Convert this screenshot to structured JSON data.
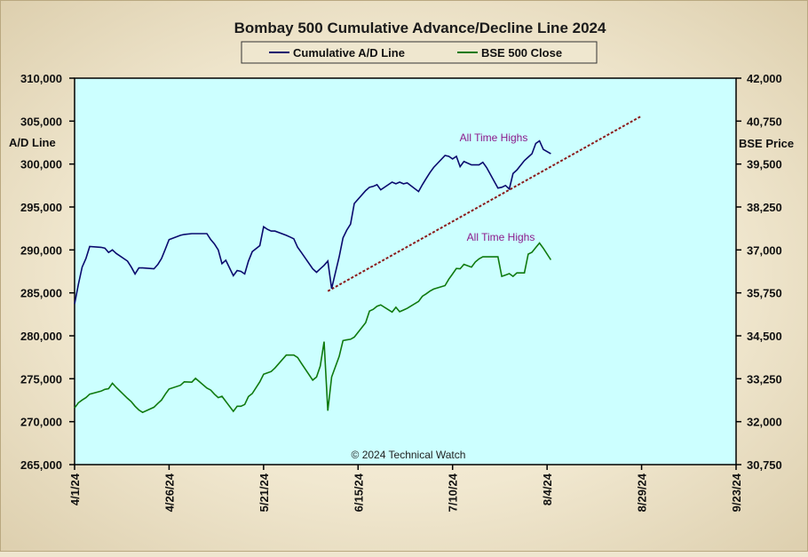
{
  "chart_data": {
    "type": "line",
    "title": "Bombay 500 Cumulative Advance/Decline Line 2024",
    "ylabel_left": "A/D Line",
    "ylabel_right": "BSE Price",
    "ylim_left": [
      265000,
      310000
    ],
    "ylim_right": [
      30750,
      42000
    ],
    "yticks_left": [
      "310,000",
      "305,000",
      "300,000",
      "295,000",
      "290,000",
      "285,000",
      "280,000",
      "275,000",
      "270,000",
      "265,000"
    ],
    "yticks_right": [
      "42,000",
      "40,750",
      "39,500",
      "38,250",
      "37,000",
      "35,750",
      "34,500",
      "33,250",
      "32,000",
      "30,750"
    ],
    "xticks": [
      "4/1/24",
      "4/26/24",
      "5/21/24",
      "6/15/24",
      "7/10/24",
      "8/4/24",
      "8/29/24",
      "9/23/24"
    ],
    "xlim": [
      "2024-04-01",
      "2024-09-23"
    ],
    "grid": false,
    "legend": "top-center",
    "copyright": "© 2024 Technical Watch",
    "annotations": [
      {
        "text": "All Time Highs",
        "near_series": "Cumulative A/D Line"
      },
      {
        "text": "All Time Highs",
        "near_series": "BSE 500 Close"
      }
    ],
    "trendline": {
      "from": {
        "date": "2024-06-07",
        "value": 285200
      },
      "to": {
        "date": "2024-08-29",
        "value": 305600
      },
      "color": "#8b1a1a",
      "style": "dashed",
      "axis": "left"
    },
    "series": [
      {
        "name": "Cumulative A/D Line",
        "axis": "left",
        "color": "#0a0a6e",
        "points": [
          [
            "2024-04-01",
            283700
          ],
          [
            "2024-04-02",
            286000
          ],
          [
            "2024-04-03",
            288000
          ],
          [
            "2024-04-04",
            289000
          ],
          [
            "2024-04-05",
            290400
          ],
          [
            "2024-04-08",
            290300
          ],
          [
            "2024-04-09",
            290200
          ],
          [
            "2024-04-10",
            289700
          ],
          [
            "2024-04-11",
            290000
          ],
          [
            "2024-04-12",
            289600
          ],
          [
            "2024-04-15",
            288700
          ],
          [
            "2024-04-16",
            288000
          ],
          [
            "2024-04-17",
            287200
          ],
          [
            "2024-04-18",
            287900
          ],
          [
            "2024-04-19",
            287900
          ],
          [
            "2024-04-22",
            287800
          ],
          [
            "2024-04-23",
            288300
          ],
          [
            "2024-04-24",
            289000
          ],
          [
            "2024-04-25",
            290100
          ],
          [
            "2024-04-26",
            291200
          ],
          [
            "2024-04-29",
            291700
          ],
          [
            "2024-04-30",
            291800
          ],
          [
            "2024-05-02",
            291900
          ],
          [
            "2024-05-03",
            291900
          ],
          [
            "2024-05-06",
            291900
          ],
          [
            "2024-05-07",
            291200
          ],
          [
            "2024-05-08",
            290700
          ],
          [
            "2024-05-09",
            290000
          ],
          [
            "2024-05-10",
            288400
          ],
          [
            "2024-05-11",
            288800
          ],
          [
            "2024-05-13",
            287000
          ],
          [
            "2024-05-14",
            287600
          ],
          [
            "2024-05-15",
            287500
          ],
          [
            "2024-05-16",
            287200
          ],
          [
            "2024-05-17",
            288700
          ],
          [
            "2024-05-18",
            289800
          ],
          [
            "2024-05-20",
            290500
          ],
          [
            "2024-05-21",
            292700
          ],
          [
            "2024-05-22",
            292400
          ],
          [
            "2024-05-23",
            292200
          ],
          [
            "2024-05-24",
            292200
          ],
          [
            "2024-05-27",
            291700
          ],
          [
            "2024-05-28",
            291500
          ],
          [
            "2024-05-29",
            291300
          ],
          [
            "2024-05-30",
            290300
          ],
          [
            "2024-05-31",
            289700
          ],
          [
            "2024-06-03",
            287800
          ],
          [
            "2024-06-04",
            287400
          ],
          [
            "2024-06-05",
            287800
          ],
          [
            "2024-06-06",
            288200
          ],
          [
            "2024-06-07",
            288700
          ],
          [
            "2024-06-08",
            285500
          ],
          [
            "2024-06-10",
            289200
          ],
          [
            "2024-06-11",
            291400
          ],
          [
            "2024-06-12",
            292300
          ],
          [
            "2024-06-13",
            293000
          ],
          [
            "2024-06-14",
            295400
          ],
          [
            "2024-06-17",
            296900
          ],
          [
            "2024-06-18",
            297300
          ],
          [
            "2024-06-19",
            297400
          ],
          [
            "2024-06-20",
            297600
          ],
          [
            "2024-06-21",
            297000
          ],
          [
            "2024-06-24",
            297900
          ],
          [
            "2024-06-25",
            297700
          ],
          [
            "2024-06-26",
            297900
          ],
          [
            "2024-06-27",
            297700
          ],
          [
            "2024-06-28",
            297800
          ],
          [
            "2024-07-01",
            296800
          ],
          [
            "2024-07-02",
            297600
          ],
          [
            "2024-07-03",
            298300
          ],
          [
            "2024-07-04",
            299000
          ],
          [
            "2024-07-05",
            299600
          ],
          [
            "2024-07-08",
            301000
          ],
          [
            "2024-07-09",
            300900
          ],
          [
            "2024-07-10",
            300600
          ],
          [
            "2024-07-11",
            300900
          ],
          [
            "2024-07-12",
            299700
          ],
          [
            "2024-07-13",
            300300
          ],
          [
            "2024-07-15",
            299900
          ],
          [
            "2024-07-16",
            299900
          ],
          [
            "2024-07-17",
            299900
          ],
          [
            "2024-07-18",
            300200
          ],
          [
            "2024-07-19",
            299600
          ],
          [
            "2024-07-22",
            297200
          ],
          [
            "2024-07-23",
            297300
          ],
          [
            "2024-07-24",
            297500
          ],
          [
            "2024-07-25",
            297100
          ],
          [
            "2024-07-26",
            298900
          ],
          [
            "2024-07-27",
            299300
          ],
          [
            "2024-07-29",
            300400
          ],
          [
            "2024-07-30",
            300800
          ],
          [
            "2024-07-31",
            301200
          ],
          [
            "2024-08-01",
            302400
          ],
          [
            "2024-08-02",
            302700
          ],
          [
            "2024-08-03",
            301700
          ],
          [
            "2024-08-05",
            301200
          ]
        ]
      },
      {
        "name": "BSE 500 Close",
        "axis": "right",
        "color": "#0f7a0f",
        "points": [
          [
            "2024-04-01",
            32400
          ],
          [
            "2024-04-02",
            32550
          ],
          [
            "2024-04-03",
            32630
          ],
          [
            "2024-04-04",
            32700
          ],
          [
            "2024-04-05",
            32800
          ],
          [
            "2024-04-08",
            32890
          ],
          [
            "2024-04-09",
            32940
          ],
          [
            "2024-04-10",
            32960
          ],
          [
            "2024-04-11",
            33120
          ],
          [
            "2024-04-12",
            33000
          ],
          [
            "2024-04-15",
            32680
          ],
          [
            "2024-04-16",
            32580
          ],
          [
            "2024-04-17",
            32450
          ],
          [
            "2024-04-18",
            32340
          ],
          [
            "2024-04-19",
            32270
          ],
          [
            "2024-04-22",
            32420
          ],
          [
            "2024-04-23",
            32530
          ],
          [
            "2024-04-24",
            32630
          ],
          [
            "2024-04-25",
            32800
          ],
          [
            "2024-04-26",
            32950
          ],
          [
            "2024-04-29",
            33060
          ],
          [
            "2024-04-30",
            33160
          ],
          [
            "2024-05-02",
            33150
          ],
          [
            "2024-05-03",
            33260
          ],
          [
            "2024-05-06",
            32980
          ],
          [
            "2024-05-07",
            32920
          ],
          [
            "2024-05-08",
            32800
          ],
          [
            "2024-05-09",
            32700
          ],
          [
            "2024-05-10",
            32740
          ],
          [
            "2024-05-13",
            32300
          ],
          [
            "2024-05-14",
            32450
          ],
          [
            "2024-05-15",
            32450
          ],
          [
            "2024-05-16",
            32500
          ],
          [
            "2024-05-17",
            32730
          ],
          [
            "2024-05-18",
            32820
          ],
          [
            "2024-05-20",
            33160
          ],
          [
            "2024-05-21",
            33380
          ],
          [
            "2024-05-22",
            33420
          ],
          [
            "2024-05-23",
            33460
          ],
          [
            "2024-05-24",
            33560
          ],
          [
            "2024-05-27",
            33940
          ],
          [
            "2024-05-28",
            33940
          ],
          [
            "2024-05-29",
            33940
          ],
          [
            "2024-05-30",
            33870
          ],
          [
            "2024-05-31",
            33700
          ],
          [
            "2024-06-03",
            33210
          ],
          [
            "2024-06-04",
            33300
          ],
          [
            "2024-06-05",
            33620
          ],
          [
            "2024-06-06",
            34330
          ],
          [
            "2024-06-07",
            32320
          ],
          [
            "2024-06-08",
            33300
          ],
          [
            "2024-06-10",
            33900
          ],
          [
            "2024-06-11",
            34360
          ],
          [
            "2024-06-12",
            34380
          ],
          [
            "2024-06-13",
            34400
          ],
          [
            "2024-06-14",
            34460
          ],
          [
            "2024-06-17",
            34880
          ],
          [
            "2024-06-18",
            35220
          ],
          [
            "2024-06-19",
            35270
          ],
          [
            "2024-06-20",
            35360
          ],
          [
            "2024-06-21",
            35400
          ],
          [
            "2024-06-24",
            35190
          ],
          [
            "2024-06-25",
            35330
          ],
          [
            "2024-06-26",
            35200
          ],
          [
            "2024-06-27",
            35250
          ],
          [
            "2024-06-28",
            35300
          ],
          [
            "2024-07-01",
            35500
          ],
          [
            "2024-07-02",
            35650
          ],
          [
            "2024-07-03",
            35720
          ],
          [
            "2024-07-04",
            35800
          ],
          [
            "2024-07-05",
            35860
          ],
          [
            "2024-07-08",
            35960
          ],
          [
            "2024-07-09",
            36150
          ],
          [
            "2024-07-10",
            36300
          ],
          [
            "2024-07-11",
            36460
          ],
          [
            "2024-07-12",
            36450
          ],
          [
            "2024-07-13",
            36580
          ],
          [
            "2024-07-15",
            36500
          ],
          [
            "2024-07-16",
            36650
          ],
          [
            "2024-07-17",
            36740
          ],
          [
            "2024-07-18",
            36800
          ],
          [
            "2024-07-19",
            36800
          ],
          [
            "2024-07-22",
            36800
          ],
          [
            "2024-07-23",
            36230
          ],
          [
            "2024-07-24",
            36270
          ],
          [
            "2024-07-25",
            36310
          ],
          [
            "2024-07-26",
            36230
          ],
          [
            "2024-07-27",
            36330
          ],
          [
            "2024-07-29",
            36330
          ],
          [
            "2024-07-30",
            36880
          ],
          [
            "2024-07-31",
            36930
          ],
          [
            "2024-08-01",
            37070
          ],
          [
            "2024-08-02",
            37200
          ],
          [
            "2024-08-03",
            37050
          ],
          [
            "2024-08-05",
            36710
          ]
        ]
      }
    ]
  }
}
